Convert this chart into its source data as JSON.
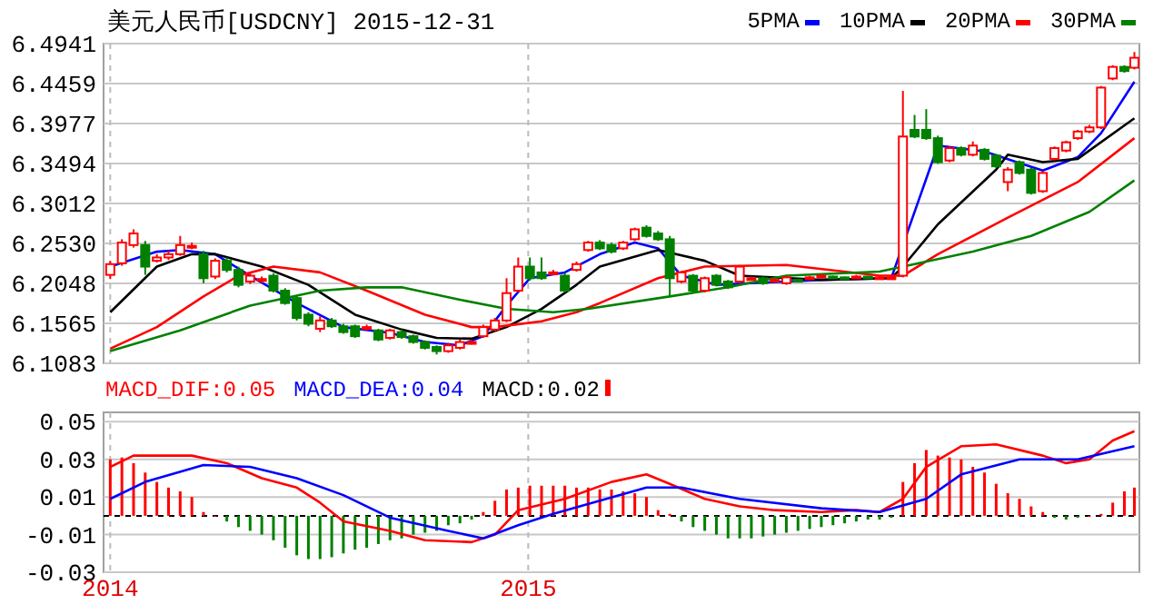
{
  "chart_data": [
    {
      "type": "candlestick",
      "title": "美元人民币[USDCNY] 2015-12-31",
      "x": [
        "2014-04-25",
        "2014-05-02",
        "2014-05-09",
        "2014-05-16",
        "2014-05-23",
        "2014-05-30",
        "2014-06-06",
        "2014-06-13",
        "2014-06-20",
        "2014-06-27",
        "2014-07-04",
        "2014-07-11",
        "2014-07-18",
        "2014-07-25",
        "2014-08-01",
        "2014-08-08",
        "2014-08-15",
        "2014-08-22",
        "2014-08-29",
        "2014-09-05",
        "2014-09-12",
        "2014-09-19",
        "2014-09-26",
        "2014-10-03",
        "2014-10-10",
        "2014-10-17",
        "2014-10-24",
        "2014-10-31",
        "2014-11-07",
        "2014-11-14",
        "2014-11-21",
        "2014-11-28",
        "2014-12-05",
        "2014-12-12",
        "2014-12-19",
        "2014-12-26",
        "2015-01-02",
        "2015-01-09",
        "2015-01-16",
        "2015-01-23",
        "2015-01-30",
        "2015-02-06",
        "2015-02-13",
        "2015-02-20",
        "2015-02-27",
        "2015-03-06",
        "2015-03-13",
        "2015-03-20",
        "2015-03-27",
        "2015-04-03",
        "2015-04-10",
        "2015-04-17",
        "2015-04-24",
        "2015-05-01",
        "2015-05-08",
        "2015-05-15",
        "2015-05-22",
        "2015-05-29",
        "2015-06-05",
        "2015-06-12",
        "2015-06-19",
        "2015-06-26",
        "2015-07-03",
        "2015-07-10",
        "2015-07-17",
        "2015-07-24",
        "2015-07-31",
        "2015-08-07",
        "2015-08-14",
        "2015-08-21",
        "2015-08-28",
        "2015-09-04",
        "2015-09-11",
        "2015-09-18",
        "2015-09-25",
        "2015-10-02",
        "2015-10-09",
        "2015-10-16",
        "2015-10-23",
        "2015-10-30",
        "2015-11-06",
        "2015-11-13",
        "2015-11-20",
        "2015-11-27",
        "2015-12-04",
        "2015-12-11",
        "2015-12-18",
        "2015-12-25",
        "2015-12-31"
      ],
      "ohlc": [
        [
          6.215,
          6.232,
          6.21,
          6.228
        ],
        [
          6.229,
          6.258,
          6.226,
          6.254
        ],
        [
          6.251,
          6.27,
          6.248,
          6.265
        ],
        [
          6.251,
          6.256,
          6.215,
          6.225
        ],
        [
          6.232,
          6.24,
          6.23,
          6.236
        ],
        [
          6.236,
          6.244,
          6.233,
          6.24
        ],
        [
          6.24,
          6.262,
          6.238,
          6.251
        ],
        [
          6.248,
          6.254,
          6.246,
          6.25
        ],
        [
          6.24,
          6.244,
          6.205,
          6.211
        ],
        [
          6.213,
          6.235,
          6.21,
          6.232
        ],
        [
          6.232,
          6.236,
          6.218,
          6.221
        ],
        [
          6.221,
          6.225,
          6.2,
          6.203
        ],
        [
          6.207,
          6.217,
          6.204,
          6.214
        ],
        [
          6.208,
          6.213,
          6.205,
          6.21
        ],
        [
          6.214,
          6.217,
          6.194,
          6.196
        ],
        [
          6.196,
          6.199,
          6.179,
          6.181
        ],
        [
          6.187,
          6.19,
          6.16,
          6.163
        ],
        [
          6.167,
          6.17,
          6.153,
          6.156
        ],
        [
          6.15,
          6.165,
          6.146,
          6.16
        ],
        [
          6.16,
          6.163,
          6.151,
          6.153
        ],
        [
          6.153,
          6.156,
          6.144,
          6.146
        ],
        [
          6.153,
          6.155,
          6.139,
          6.141
        ],
        [
          6.15,
          6.155,
          6.148,
          6.152
        ],
        [
          6.148,
          6.15,
          6.135,
          6.137
        ],
        [
          6.139,
          6.15,
          6.137,
          6.148
        ],
        [
          6.146,
          6.149,
          6.138,
          6.14
        ],
        [
          6.141,
          6.143,
          6.132,
          6.134
        ],
        [
          6.134,
          6.136,
          6.125,
          6.127
        ],
        [
          6.128,
          6.13,
          6.119,
          6.123
        ],
        [
          6.123,
          6.133,
          6.121,
          6.13
        ],
        [
          6.127,
          6.137,
          6.125,
          6.134
        ],
        [
          6.133,
          6.137,
          6.131,
          6.134
        ],
        [
          6.141,
          6.155,
          6.139,
          6.152
        ],
        [
          6.149,
          6.163,
          6.147,
          6.16
        ],
        [
          6.16,
          6.211,
          6.158,
          6.193
        ],
        [
          6.196,
          6.236,
          6.194,
          6.225
        ],
        [
          6.225,
          6.236,
          6.208,
          6.211
        ],
        [
          6.218,
          6.236,
          6.209,
          6.211
        ],
        [
          6.217,
          6.221,
          6.215,
          6.218
        ],
        [
          6.214,
          6.217,
          6.194,
          6.196
        ],
        [
          6.221,
          6.231,
          6.219,
          6.228
        ],
        [
          6.245,
          6.256,
          6.243,
          6.254
        ],
        [
          6.254,
          6.257,
          6.245,
          6.247
        ],
        [
          6.251,
          6.254,
          6.241,
          6.243
        ],
        [
          6.247,
          6.256,
          6.245,
          6.254
        ],
        [
          6.258,
          6.272,
          6.256,
          6.27
        ],
        [
          6.272,
          6.275,
          6.26,
          6.262
        ],
        [
          6.265,
          6.268,
          6.256,
          6.258
        ],
        [
          6.258,
          6.262,
          6.189,
          6.211
        ],
        [
          6.207,
          6.22,
          6.205,
          6.218
        ],
        [
          6.214,
          6.216,
          6.194,
          6.196
        ],
        [
          6.196,
          6.213,
          6.194,
          6.211
        ],
        [
          6.214,
          6.216,
          6.201,
          6.203
        ],
        [
          6.207,
          6.209,
          6.198,
          6.2
        ],
        [
          6.207,
          6.227,
          6.205,
          6.225
        ],
        [
          6.21,
          6.213,
          6.208,
          6.211
        ],
        [
          6.211,
          6.213,
          6.203,
          6.205
        ],
        [
          6.208,
          6.211,
          6.206,
          6.209
        ],
        [
          6.205,
          6.214,
          6.203,
          6.212
        ],
        [
          6.209,
          6.21,
          6.206,
          6.208
        ],
        [
          6.21,
          6.214,
          6.209,
          6.212
        ],
        [
          6.212,
          6.216,
          6.211,
          6.214
        ],
        [
          6.213,
          6.214,
          6.21,
          6.212
        ],
        [
          6.212,
          6.213,
          6.209,
          6.211
        ],
        [
          6.211,
          6.215,
          6.21,
          6.213
        ],
        [
          6.213,
          6.214,
          6.211,
          6.212
        ],
        [
          6.212,
          6.214,
          6.21,
          6.212
        ],
        [
          6.212,
          6.214,
          6.21,
          6.212
        ],
        [
          6.214,
          6.437,
          6.212,
          6.382
        ],
        [
          6.39,
          6.408,
          6.38,
          6.382
        ],
        [
          6.39,
          6.415,
          6.378,
          6.38
        ],
        [
          6.38,
          6.383,
          6.349,
          6.351
        ],
        [
          6.353,
          6.37,
          6.351,
          6.368
        ],
        [
          6.368,
          6.37,
          6.358,
          6.36
        ],
        [
          6.36,
          6.376,
          6.358,
          6.371
        ],
        [
          6.366,
          6.368,
          6.353,
          6.355
        ],
        [
          6.359,
          6.361,
          6.344,
          6.346
        ],
        [
          6.327,
          6.345,
          6.316,
          6.342
        ],
        [
          6.351,
          6.353,
          6.336,
          6.338
        ],
        [
          6.342,
          6.344,
          6.312,
          6.314
        ],
        [
          6.316,
          6.34,
          6.314,
          6.338
        ],
        [
          6.355,
          6.37,
          6.353,
          6.368
        ],
        [
          6.365,
          6.377,
          6.363,
          6.375
        ],
        [
          6.38,
          6.39,
          6.378,
          6.388
        ],
        [
          6.388,
          6.396,
          6.386,
          6.393
        ],
        [
          6.393,
          6.443,
          6.391,
          6.441
        ],
        [
          6.452,
          6.468,
          6.45,
          6.466
        ],
        [
          6.466,
          6.468,
          6.459,
          6.461
        ],
        [
          6.465,
          6.484,
          6.463,
          6.477
        ]
      ],
      "series": [
        {
          "name": "5PMA",
          "type": "line",
          "color": "#0000ff",
          "x": [
            "2014-04-25",
            "2014-05-23",
            "2014-06-06",
            "2014-06-27",
            "2014-07-18",
            "2014-08-15",
            "2014-09-12",
            "2014-10-10",
            "2014-10-31",
            "2014-11-21",
            "2014-12-05",
            "2014-12-19",
            "2015-01-02",
            "2015-01-23",
            "2015-02-13",
            "2015-03-06",
            "2015-03-20",
            "2015-04-03",
            "2015-04-24",
            "2015-05-15",
            "2015-06-26",
            "2015-08-07",
            "2015-09-04",
            "2015-10-02",
            "2015-10-23",
            "2015-11-06",
            "2015-11-27",
            "2015-12-11",
            "2015-12-31"
          ],
          "values": [
            6.225,
            6.243,
            6.245,
            6.24,
            6.214,
            6.181,
            6.152,
            6.145,
            6.134,
            6.13,
            6.141,
            6.178,
            6.211,
            6.218,
            6.24,
            6.254,
            6.247,
            6.214,
            6.203,
            6.205,
            6.209,
            6.211,
            6.371,
            6.364,
            6.35,
            6.341,
            6.357,
            6.386,
            6.448
          ]
        },
        {
          "name": "10PMA",
          "type": "line",
          "color": "#000000",
          "x": [
            "2014-04-25",
            "2014-05-23",
            "2014-06-13",
            "2014-06-27",
            "2014-07-25",
            "2014-08-22",
            "2014-09-19",
            "2014-10-17",
            "2014-11-07",
            "2014-11-28",
            "2014-12-19",
            "2015-01-09",
            "2015-01-30",
            "2015-02-13",
            "2015-03-20",
            "2015-04-17",
            "2015-05-08",
            "2015-06-26",
            "2015-08-07",
            "2015-08-14",
            "2015-09-04",
            "2015-10-09",
            "2015-10-16",
            "2015-11-06",
            "2015-11-27",
            "2015-12-31"
          ],
          "values": [
            6.17,
            6.225,
            6.24,
            6.24,
            6.225,
            6.203,
            6.167,
            6.149,
            6.139,
            6.138,
            6.152,
            6.174,
            6.203,
            6.225,
            6.245,
            6.232,
            6.214,
            6.209,
            6.211,
            6.225,
            6.276,
            6.342,
            6.36,
            6.351,
            6.355,
            6.404
          ]
        },
        {
          "name": "20PMA",
          "type": "line",
          "color": "#ff0000",
          "x": [
            "2014-04-25",
            "2014-05-23",
            "2014-06-20",
            "2014-07-11",
            "2014-08-01",
            "2014-08-29",
            "2014-09-26",
            "2014-10-31",
            "2014-11-28",
            "2014-12-12",
            "2015-01-09",
            "2015-01-30",
            "2015-02-13",
            "2015-03-20",
            "2015-04-17",
            "2015-06-05",
            "2015-07-31",
            "2015-08-14",
            "2015-09-04",
            "2015-10-16",
            "2015-11-27",
            "2015-12-31"
          ],
          "values": [
            6.126,
            6.152,
            6.189,
            6.214,
            6.225,
            6.218,
            6.196,
            6.167,
            6.152,
            6.152,
            6.159,
            6.17,
            6.181,
            6.211,
            6.225,
            6.227,
            6.214,
            6.214,
            6.24,
            6.284,
            6.327,
            6.38
          ]
        },
        {
          "name": "30PMA",
          "type": "line",
          "color": "#008000",
          "x": [
            "2014-04-25",
            "2014-06-06",
            "2014-07-18",
            "2014-08-29",
            "2014-09-26",
            "2014-10-17",
            "2014-11-21",
            "2014-12-19",
            "2015-01-16",
            "2015-02-06",
            "2015-03-27",
            "2015-05-01",
            "2015-06-05",
            "2015-07-31",
            "2015-08-14",
            "2015-09-25",
            "2015-10-30",
            "2015-12-04",
            "2015-12-31"
          ],
          "values": [
            6.123,
            6.148,
            6.178,
            6.196,
            6.2,
            6.2,
            6.185,
            6.174,
            6.17,
            6.174,
            6.189,
            6.2,
            6.214,
            6.219,
            6.225,
            6.243,
            6.262,
            6.291,
            6.329
          ]
        }
      ],
      "xlim": [
        "2014-04-21",
        "2016-01-03"
      ],
      "xticks": [
        {
          "value": "2014-04-25",
          "label": null
        },
        {
          "value": "2015-01-01",
          "label": null
        }
      ],
      "ylim": [
        6.1083,
        6.4941
      ],
      "yticks": [
        6.1083,
        6.1565,
        6.2048,
        {
          "value": 6.253,
          "label": "6.2530"
        },
        6.3012,
        6.3494,
        6.3977,
        6.4459,
        6.4941
      ],
      "tick_labels": "y",
      "grid": true,
      "legend": "top right"
    },
    {
      "type": "bar",
      "x": [
        "2014-04-25",
        "2014-05-02",
        "2014-05-09",
        "2014-05-16",
        "2014-05-23",
        "2014-05-30",
        "2014-06-06",
        "2014-06-13",
        "2014-06-20",
        "2014-06-27",
        "2014-07-04",
        "2014-07-11",
        "2014-07-18",
        "2014-07-25",
        "2014-08-01",
        "2014-08-08",
        "2014-08-15",
        "2014-08-22",
        "2014-08-29",
        "2014-09-05",
        "2014-09-12",
        "2014-09-19",
        "2014-09-26",
        "2014-10-03",
        "2014-10-10",
        "2014-10-17",
        "2014-10-24",
        "2014-10-31",
        "2014-11-07",
        "2014-11-14",
        "2014-11-21",
        "2014-11-28",
        "2014-12-05",
        "2014-12-12",
        "2014-12-19",
        "2014-12-26",
        "2015-01-02",
        "2015-01-09",
        "2015-01-16",
        "2015-01-23",
        "2015-01-30",
        "2015-02-06",
        "2015-02-13",
        "2015-02-20",
        "2015-02-27",
        "2015-03-06",
        "2015-03-13",
        "2015-03-20",
        "2015-03-27",
        "2015-04-03",
        "2015-04-10",
        "2015-04-17",
        "2015-04-24",
        "2015-05-01",
        "2015-05-08",
        "2015-05-15",
        "2015-05-22",
        "2015-05-29",
        "2015-06-05",
        "2015-06-12",
        "2015-06-19",
        "2015-06-26",
        "2015-07-03",
        "2015-07-10",
        "2015-07-17",
        "2015-07-24",
        "2015-07-31",
        "2015-08-07",
        "2015-08-14",
        "2015-08-21",
        "2015-08-28",
        "2015-09-04",
        "2015-09-11",
        "2015-09-18",
        "2015-09-25",
        "2015-10-02",
        "2015-10-09",
        "2015-10-16",
        "2015-10-23",
        "2015-10-30",
        "2015-11-06",
        "2015-11-13",
        "2015-11-20",
        "2015-11-27",
        "2015-12-04",
        "2015-12-11",
        "2015-12-18",
        "2015-12-25",
        "2015-12-31"
      ],
      "series": [
        {
          "name": "MACD_DIF:0.05",
          "type": "line",
          "color": "#ff0000",
          "x": [
            "2014-04-25",
            "2014-05-09",
            "2014-06-13",
            "2014-07-04",
            "2014-07-25",
            "2014-08-15",
            "2014-08-29",
            "2014-09-12",
            "2014-10-10",
            "2014-10-31",
            "2014-11-28",
            "2014-12-12",
            "2014-12-26",
            "2015-01-23",
            "2015-02-20",
            "2015-03-13",
            "2015-03-27",
            "2015-04-17",
            "2015-05-08",
            "2015-05-29",
            "2015-06-26",
            "2015-07-17",
            "2015-07-31",
            "2015-08-14",
            "2015-08-28",
            "2015-09-18",
            "2015-10-09",
            "2015-11-06",
            "2015-11-20",
            "2015-12-04",
            "2015-12-18",
            "2015-12-31"
          ],
          "values": [
            0.026,
            0.032,
            0.032,
            0.028,
            0.02,
            0.015,
            0.007,
            -0.003,
            -0.008,
            -0.013,
            -0.014,
            -0.01,
            0.003,
            0.009,
            0.018,
            0.022,
            0.017,
            0.009,
            0.005,
            0.003,
            0.002,
            0.003,
            0.002,
            0.009,
            0.026,
            0.037,
            0.038,
            0.032,
            0.028,
            0.03,
            0.04,
            0.045
          ]
        },
        {
          "name": "MACD_DEA:0.04",
          "type": "line",
          "color": "#0000ff",
          "x": [
            "2014-04-25",
            "2014-05-16",
            "2014-06-20",
            "2014-07-18",
            "2014-08-15",
            "2014-09-12",
            "2014-10-10",
            "2014-11-14",
            "2014-12-05",
            "2014-12-26",
            "2015-01-16",
            "2015-02-13",
            "2015-03-13",
            "2015-04-03",
            "2015-05-08",
            "2015-06-26",
            "2015-07-31",
            "2015-08-28",
            "2015-09-18",
            "2015-10-23",
            "2015-11-27",
            "2015-12-31"
          ],
          "values": [
            0.009,
            0.018,
            0.027,
            0.026,
            0.02,
            0.011,
            -0.001,
            -0.008,
            -0.012,
            -0.005,
            0.001,
            0.008,
            0.015,
            0.015,
            0.009,
            0.004,
            0.002,
            0.009,
            0.022,
            0.03,
            0.03,
            0.037
          ]
        },
        {
          "name": "MACD:0.02",
          "type": "bar",
          "values": [
            0.03,
            0.031,
            0.028,
            0.023,
            0.018,
            0.015,
            0.013,
            0.01,
            0.002,
            0.0,
            -0.003,
            -0.006,
            -0.008,
            -0.01,
            -0.013,
            -0.017,
            -0.021,
            -0.023,
            -0.023,
            -0.022,
            -0.02,
            -0.018,
            -0.017,
            -0.015,
            -0.013,
            -0.012,
            -0.01,
            -0.009,
            -0.008,
            -0.005,
            -0.004,
            -0.002,
            0.002,
            0.008,
            0.014,
            0.015,
            0.016,
            0.016,
            0.016,
            0.016,
            0.015,
            0.015,
            0.014,
            0.014,
            0.013,
            0.012,
            0.01,
            0.003,
            0.001,
            -0.003,
            -0.006,
            -0.008,
            -0.01,
            -0.012,
            -0.012,
            -0.012,
            -0.011,
            -0.01,
            -0.009,
            -0.008,
            -0.007,
            -0.006,
            -0.005,
            -0.004,
            -0.003,
            -0.002,
            -0.002,
            -0.001,
            0.018,
            0.028,
            0.035,
            0.032,
            0.031,
            0.03,
            0.026,
            0.023,
            0.017,
            0.012,
            0.009,
            0.005,
            0.002,
            -0.001,
            -0.002,
            -0.001,
            0.0,
            0.001,
            0.007,
            0.013,
            0.015
          ],
          "colors": [
            "#ff0000",
            "#ff0000",
            "#ff0000",
            "#ff0000",
            "#ff0000",
            "#ff0000",
            "#ff0000",
            "#ff0000",
            "#ff0000",
            "#ff0000",
            "#008000",
            "#008000",
            "#008000",
            "#008000",
            "#008000",
            "#008000",
            "#008000",
            "#008000",
            "#008000",
            "#008000",
            "#008000",
            "#008000",
            "#008000",
            "#008000",
            "#008000",
            "#008000",
            "#008000",
            "#008000",
            "#008000",
            "#008000",
            "#008000",
            "#008000",
            "#ff0000",
            "#ff0000",
            "#ff0000",
            "#ff0000",
            "#ff0000",
            "#ff0000",
            "#ff0000",
            "#ff0000",
            "#ff0000",
            "#ff0000",
            "#ff0000",
            "#ff0000",
            "#ff0000",
            "#ff0000",
            "#ff0000",
            "#ff0000",
            "#ff0000",
            "#008000",
            "#008000",
            "#008000",
            "#008000",
            "#008000",
            "#008000",
            "#008000",
            "#008000",
            "#008000",
            "#008000",
            "#008000",
            "#008000",
            "#008000",
            "#008000",
            "#008000",
            "#008000",
            "#008000",
            "#008000",
            "#008000",
            "#ff0000",
            "#ff0000",
            "#ff0000",
            "#ff0000",
            "#ff0000",
            "#ff0000",
            "#ff0000",
            "#ff0000",
            "#ff0000",
            "#ff0000",
            "#ff0000",
            "#ff0000",
            "#ff0000",
            "#008000",
            "#008000",
            "#008000",
            "#ff0000",
            "#ff0000",
            "#ff0000",
            "#ff0000",
            "#ff0000"
          ]
        }
      ],
      "xlim": [
        "2014-04-21",
        "2016-01-03"
      ],
      "xticks": [
        {
          "value": "2014-04-25",
          "label": "2014"
        },
        {
          "value": "2015-01-01",
          "label": "2015"
        }
      ],
      "ylim": [
        -0.03,
        0.055
      ],
      "yticks": [
        -0.03,
        -0.01,
        0.01,
        0.03,
        0.05
      ],
      "ref_lines": [
        {
          "axis": "y",
          "value": 0,
          "color": "#000000",
          "line_style": "dashed"
        }
      ],
      "grid": true,
      "legend": "top left"
    }
  ]
}
